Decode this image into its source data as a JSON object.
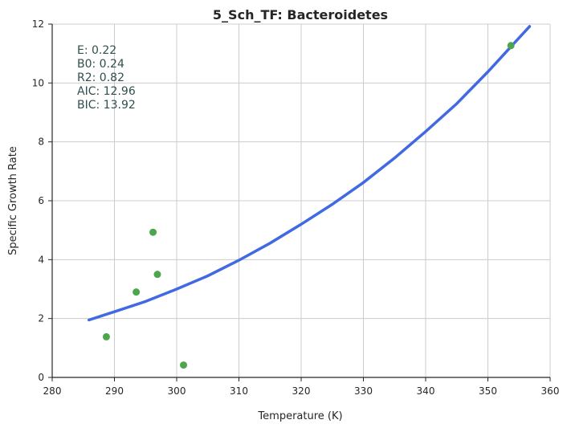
{
  "chart_data": {
    "type": "scatter",
    "title": "5_Sch_TF: Bacteroidetes",
    "xlabel": "Temperature (K)",
    "ylabel": "Specific Growth Rate",
    "xlim": [
      280,
      360
    ],
    "ylim": [
      0,
      12
    ],
    "xticks": [
      280,
      290,
      300,
      310,
      320,
      330,
      340,
      350,
      360
    ],
    "yticks": [
      0,
      2,
      4,
      6,
      8,
      10,
      12
    ],
    "grid": true,
    "annotations": [
      "E:  0.22",
      "B0:  0.24",
      "R2:  0.82",
      "AIC: 12.96",
      "BIC: 13.92"
    ],
    "series": [
      {
        "kind": "points",
        "color": "#4ca64c",
        "points": [
          {
            "x": 288.7,
            "y": 1.38
          },
          {
            "x": 293.5,
            "y": 2.9
          },
          {
            "x": 296.2,
            "y": 4.93
          },
          {
            "x": 296.9,
            "y": 3.5
          },
          {
            "x": 301.1,
            "y": 0.42
          },
          {
            "x": 353.7,
            "y": 11.27
          }
        ]
      },
      {
        "kind": "fit-line",
        "color": "#4169e1",
        "points": [
          {
            "x": 285.9,
            "y": 1.95
          },
          {
            "x": 290,
            "y": 2.23
          },
          {
            "x": 295,
            "y": 2.58
          },
          {
            "x": 300,
            "y": 3.0
          },
          {
            "x": 305,
            "y": 3.45
          },
          {
            "x": 310,
            "y": 3.98
          },
          {
            "x": 315,
            "y": 4.56
          },
          {
            "x": 320,
            "y": 5.2
          },
          {
            "x": 325,
            "y": 5.88
          },
          {
            "x": 330,
            "y": 6.62
          },
          {
            "x": 335,
            "y": 7.45
          },
          {
            "x": 340,
            "y": 8.35
          },
          {
            "x": 345,
            "y": 9.3
          },
          {
            "x": 350,
            "y": 10.38
          },
          {
            "x": 356.7,
            "y": 11.92
          }
        ]
      }
    ]
  }
}
